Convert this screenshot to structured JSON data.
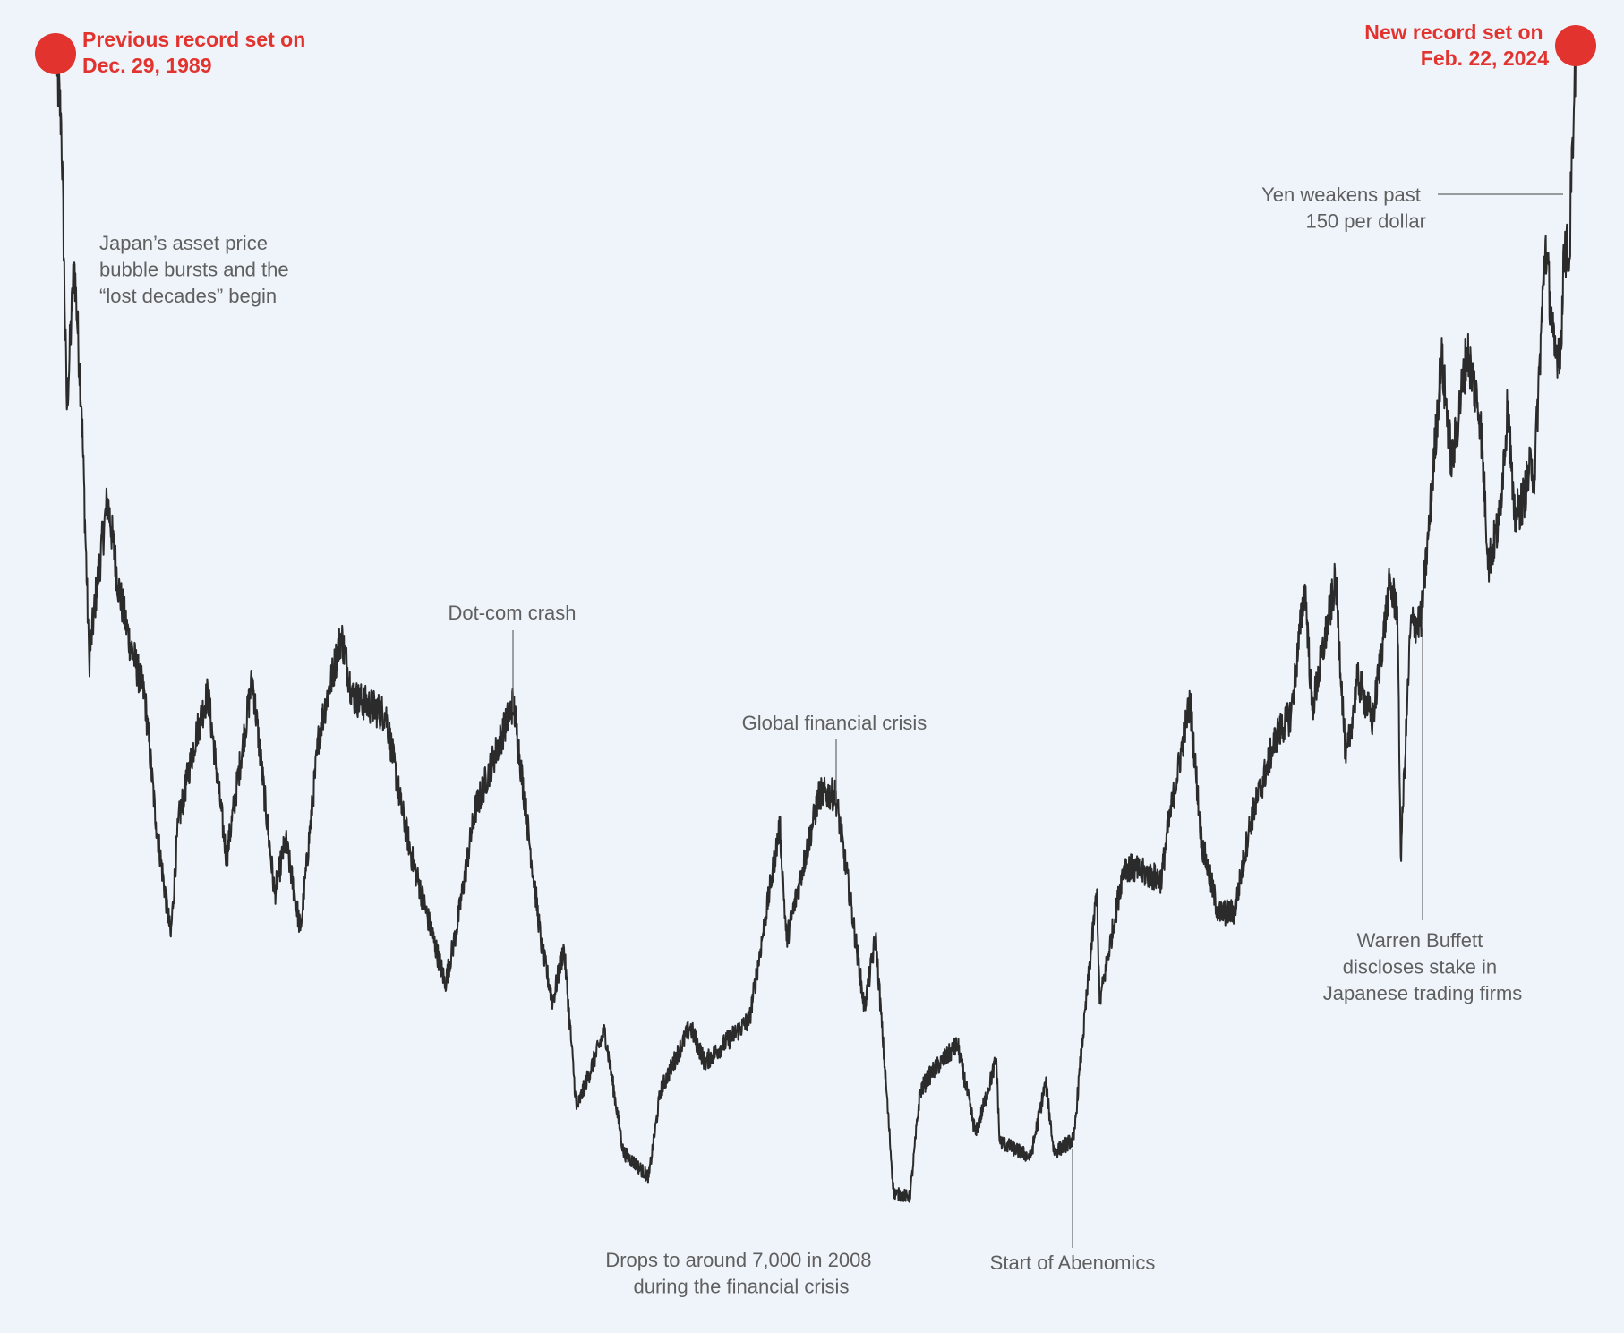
{
  "colors": {
    "background": "#eef4fa",
    "line": "#2b2b2b",
    "record": "#e2332e",
    "annotation_text": "#5f5f5f",
    "leader": "#666666"
  },
  "chart_data": {
    "type": "line",
    "title": "",
    "xlabel": "",
    "ylabel": "",
    "x_range": [
      "1989-12-29",
      "2024-02-22"
    ],
    "y_range_approx": [
      6800,
      39100
    ],
    "grid": false,
    "legend": "none",
    "series": [
      {
        "x": [
          "1989-12-29",
          "1990-02-15",
          "1990-04-01",
          "1990-06-01",
          "1990-08-01",
          "1990-10-01",
          "1990-12-01",
          "1991-03-01",
          "1991-06-01",
          "1991-09-01",
          "1992-01-01",
          "1992-04-01",
          "1992-08-01",
          "1992-10-01",
          "1993-03-01",
          "1993-06-01",
          "1993-11-01",
          "1994-06-01",
          "1994-12-01",
          "1995-03-01",
          "1995-07-01",
          "1995-12-01",
          "1996-06-01",
          "1996-09-01",
          "1997-06-01",
          "1997-10-01",
          "1998-01-01",
          "1998-10-01",
          "1999-01-01",
          "1999-06-01",
          "2000-04-12",
          "2000-12-01",
          "2001-03-01",
          "2001-06-01",
          "2001-09-12",
          "2002-05-01",
          "2002-10-01",
          "2003-04-28",
          "2003-08-01",
          "2004-04-01",
          "2004-08-01",
          "2005-04-01",
          "2005-08-01",
          "2006-04-07",
          "2006-06-01",
          "2007-02-26",
          "2007-07-09",
          "2007-11-01",
          "2008-03-01",
          "2008-06-01",
          "2008-10-27",
          "2009-03-10",
          "2009-06-01",
          "2009-08-31",
          "2010-04-05",
          "2010-08-31",
          "2011-02-17",
          "2011-03-15",
          "2011-11-25",
          "2012-03-27",
          "2012-06-04",
          "2012-11-14",
          "2013-01-01",
          "2013-05-22",
          "2013-06-13",
          "2013-12-30",
          "2014-10-31",
          "2015-01-01",
          "2015-06-24",
          "2015-09-29",
          "2016-02-12",
          "2016-06-24",
          "2016-11-01",
          "2017-06-01",
          "2017-10-01",
          "2018-01-23",
          "2018-03-23",
          "2018-10-02",
          "2018-12-25",
          "2019-04-01",
          "2019-08-01",
          "2019-12-17",
          "2020-02-20",
          "2020-03-19",
          "2020-06-08",
          "2020-08-31",
          "2020-11-01",
          "2021-02-16",
          "2021-05-13",
          "2021-09-14",
          "2021-12-31",
          "2022-03-09",
          "2022-06-01",
          "2022-08-17",
          "2022-10-03",
          "2022-12-20",
          "2023-03-01",
          "2023-03-17",
          "2023-06-19",
          "2023-09-01",
          "2023-10-31",
          "2023-11-15",
          "2024-01-05",
          "2024-01-15",
          "2024-02-01",
          "2024-02-22"
        ],
        "values": [
          38916,
          37000,
          29000,
          33100,
          29000,
          22000,
          24000,
          26500,
          24000,
          22500,
          21000,
          17500,
          14309,
          17500,
          20000,
          21100,
          16500,
          21500,
          15500,
          17000,
          14485,
          20000,
          22700,
          21000,
          20500,
          18000,
          16500,
          13000,
          14500,
          17800,
          20833,
          14000,
          12500,
          14000,
          9500,
          11700,
          8300,
          7608,
          10000,
          11800,
          10800,
          11600,
          12000,
          17400,
          14200,
          18300,
          18260,
          15500,
          12300,
          14300,
          7162,
          7055,
          10000,
          10500,
          11300,
          8800,
          10900,
          8605,
          8160,
          10255,
          8295,
          8661,
          10600,
          15627,
          12445,
          16291,
          15900,
          17450,
          20868,
          16930,
          14952,
          15000,
          17500,
          19900,
          20500,
          24124,
          20617,
          24271,
          19155,
          21500,
          20300,
          24066,
          23500,
          16553,
          23000,
          23100,
          25500,
          30467,
          27448,
          30670,
          28791,
          24717,
          25800,
          29222,
          25937,
          26500,
          27600,
          26900,
          33706,
          30500,
          30858,
          33600,
          33200,
          35600,
          36000,
          39098
        ]
      }
    ],
    "annotations": {
      "prev_record": [
        "Previous record set on",
        "Dec. 29, 1989"
      ],
      "new_record": [
        "New record set on",
        "Feb. 22, 2024"
      ],
      "bubble": [
        "Japan’s asset price",
        "bubble bursts and the",
        "“lost decades” begin"
      ],
      "dotcom": "Dot-com crash",
      "gfc": "Global financial crisis",
      "drops": [
        "Drops to around 7,000 in 2008",
        "during the financial crisis"
      ],
      "abenomics": "Start of Abenomics",
      "buffett": [
        "Warren Buffett",
        "discloses stake in",
        "Japanese trading firms"
      ],
      "yen": [
        "Yen weakens past",
        "150 per dollar"
      ]
    }
  }
}
